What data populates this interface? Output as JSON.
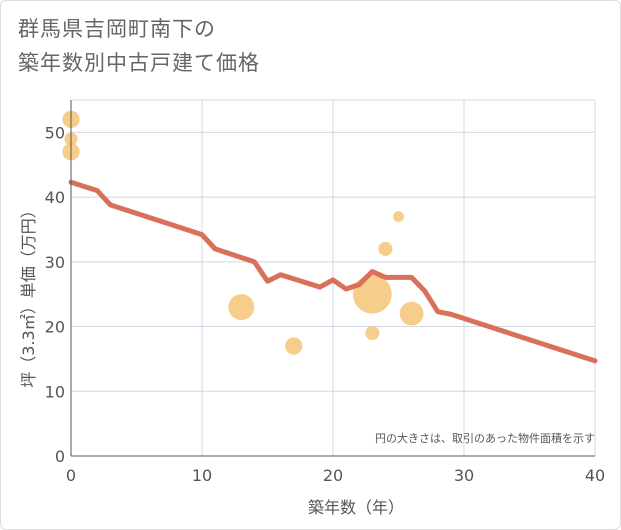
{
  "title_line1": "群馬県吉岡町南下の",
  "title_line2": "築年数別中古戸建て価格",
  "chart_data": {
    "type": "scatter",
    "title": "群馬県吉岡町南下の築年数別中古戸建て価格",
    "xlabel": "築年数（年）",
    "ylabel": "坪（3.3㎡）単価（万円）",
    "xlim": [
      0,
      40
    ],
    "ylim": [
      0,
      55
    ],
    "x_ticks": [
      0,
      10,
      20,
      30,
      40
    ],
    "y_ticks": [
      0,
      10,
      20,
      30,
      40,
      50
    ],
    "grid": true,
    "note": "円の大きさは、取引のあった物件面積を示す",
    "colors": {
      "bubble": "#f5c06e",
      "line": "#d9705a",
      "grid": "#cfd8e3"
    },
    "bubbles": [
      {
        "x": 0,
        "y": 52,
        "size": 1.6
      },
      {
        "x": 0,
        "y": 49,
        "size": 1.2
      },
      {
        "x": 0,
        "y": 47,
        "size": 1.6
      },
      {
        "x": 13,
        "y": 23,
        "size": 2.4
      },
      {
        "x": 17,
        "y": 17,
        "size": 1.6
      },
      {
        "x": 23,
        "y": 25,
        "size": 3.6
      },
      {
        "x": 23,
        "y": 19,
        "size": 1.3
      },
      {
        "x": 24,
        "y": 32,
        "size": 1.3
      },
      {
        "x": 25,
        "y": 37,
        "size": 1.0
      },
      {
        "x": 26,
        "y": 22,
        "size": 2.2
      }
    ],
    "trend": {
      "x": [
        0,
        2,
        3,
        10,
        11,
        14,
        15,
        16,
        19,
        20,
        21,
        22,
        23,
        24,
        25,
        26,
        27,
        28,
        29,
        40
      ],
      "y": [
        42.3,
        41,
        38.8,
        34.2,
        32,
        30,
        27,
        28,
        26.1,
        27.2,
        25.8,
        26.5,
        28.5,
        27.6,
        27.6,
        27.6,
        25.5,
        22.3,
        21.9,
        14.7
      ]
    }
  }
}
